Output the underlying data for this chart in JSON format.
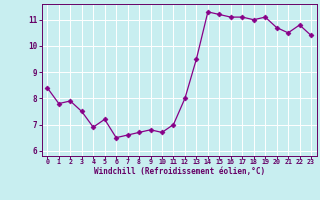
{
  "x": [
    0,
    1,
    2,
    3,
    4,
    5,
    6,
    7,
    8,
    9,
    10,
    11,
    12,
    13,
    14,
    15,
    16,
    17,
    18,
    19,
    20,
    21,
    22,
    23
  ],
  "y": [
    8.4,
    7.8,
    7.9,
    7.5,
    6.9,
    7.2,
    6.5,
    6.6,
    6.7,
    6.8,
    6.7,
    7.0,
    8.0,
    9.5,
    11.3,
    11.2,
    11.1,
    11.1,
    11.0,
    11.1,
    10.7,
    10.5,
    10.8,
    10.4
  ],
  "line_color": "#880088",
  "marker": "D",
  "marker_size": 2.5,
  "bg_color": "#c8eef0",
  "grid_color": "#ffffff",
  "xlabel": "Windchill (Refroidissement éolien,°C)",
  "xlabel_color": "#660066",
  "tick_color": "#660066",
  "spine_color": "#660066",
  "ylim": [
    5.8,
    11.6
  ],
  "xlim": [
    -0.5,
    23.5
  ],
  "yticks": [
    6,
    7,
    8,
    9,
    10,
    11
  ],
  "xticks": [
    0,
    1,
    2,
    3,
    4,
    5,
    6,
    7,
    8,
    9,
    10,
    11,
    12,
    13,
    14,
    15,
    16,
    17,
    18,
    19,
    20,
    21,
    22,
    23
  ],
  "xlabel_fontsize": 5.5,
  "xtick_fontsize": 4.8,
  "ytick_fontsize": 5.5
}
